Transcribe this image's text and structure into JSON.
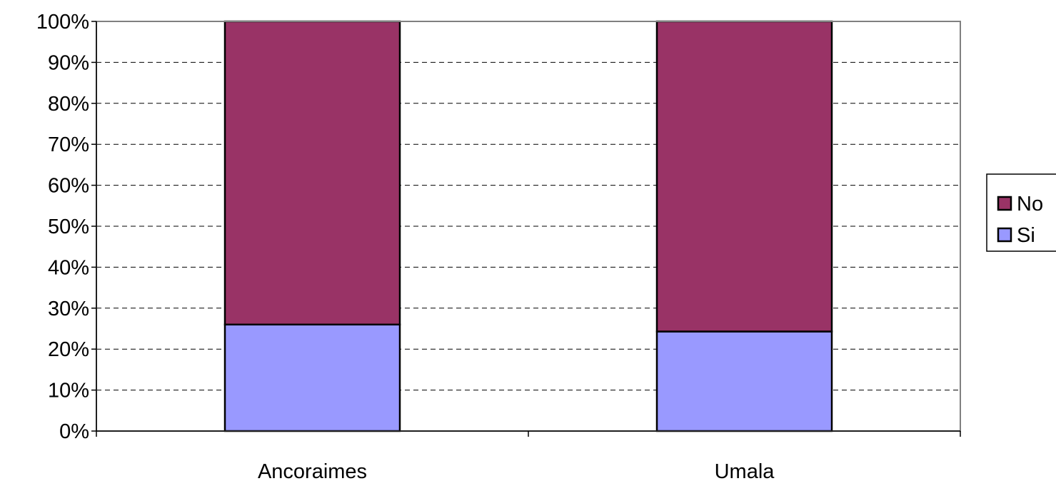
{
  "chart_data": {
    "type": "bar",
    "stacked": true,
    "percent_stacked": true,
    "title": "",
    "xlabel": "",
    "ylabel": "",
    "categories": [
      "Ancoraimes",
      "Umala"
    ],
    "series": [
      {
        "name": "Si",
        "color": "#9999ff",
        "values": [
          26,
          24.3
        ]
      },
      {
        "name": "No",
        "color": "#993366",
        "values": [
          74,
          75.7
        ]
      }
    ],
    "ylim": [
      0,
      100
    ],
    "yticks": [
      "0%",
      "10%",
      "20%",
      "30%",
      "40%",
      "50%",
      "60%",
      "70%",
      "80%",
      "90%",
      "100%"
    ],
    "grid": true,
    "grid_style": "dashed",
    "legend": {
      "position": "right",
      "entries": [
        "No",
        "Si"
      ]
    }
  }
}
